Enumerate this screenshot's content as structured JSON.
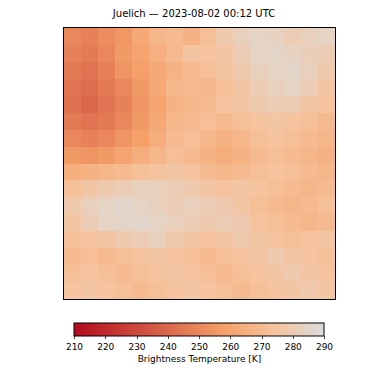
{
  "chart_data": {
    "type": "heatmap",
    "title": "Juelich — 2023-08-02 00:12 UTC",
    "tick_labels": false,
    "cells": [
      [
        250,
        248,
        252,
        255,
        262,
        268,
        270,
        266,
        272,
        278,
        282,
        284,
        283,
        280,
        282,
        284
      ],
      [
        248,
        246,
        250,
        256,
        260,
        265,
        270,
        275,
        274,
        276,
        280,
        284,
        285,
        283,
        281,
        280
      ],
      [
        246,
        244,
        248,
        254,
        258,
        262,
        266,
        270,
        272,
        275,
        278,
        282,
        284,
        285,
        282,
        278
      ],
      [
        244,
        242,
        246,
        250,
        256,
        262,
        268,
        270,
        268,
        272,
        276,
        280,
        282,
        284,
        280,
        276
      ],
      [
        243,
        240,
        244,
        248,
        254,
        260,
        266,
        268,
        270,
        274,
        276,
        278,
        280,
        279,
        276,
        274
      ],
      [
        246,
        244,
        246,
        250,
        256,
        262,
        268,
        270,
        272,
        270,
        272,
        274,
        276,
        274,
        272,
        270
      ],
      [
        250,
        248,
        250,
        254,
        258,
        264,
        270,
        272,
        268,
        266,
        268,
        272,
        274,
        272,
        270,
        268
      ],
      [
        256,
        254,
        256,
        260,
        264,
        268,
        272,
        270,
        266,
        264,
        266,
        270,
        272,
        270,
        268,
        266
      ],
      [
        264,
        266,
        268,
        270,
        272,
        274,
        276,
        274,
        270,
        268,
        270,
        272,
        274,
        272,
        270,
        268
      ],
      [
        272,
        276,
        278,
        280,
        282,
        282,
        280,
        278,
        276,
        274,
        276,
        274,
        272,
        270,
        268,
        270
      ],
      [
        278,
        282,
        284,
        286,
        284,
        282,
        280,
        282,
        280,
        278,
        276,
        272,
        270,
        268,
        270,
        272
      ],
      [
        276,
        280,
        284,
        285,
        286,
        284,
        282,
        280,
        278,
        280,
        278,
        274,
        272,
        270,
        268,
        270
      ],
      [
        272,
        274,
        276,
        278,
        280,
        282,
        278,
        276,
        274,
        276,
        278,
        276,
        274,
        272,
        274,
        276
      ],
      [
        270,
        272,
        270,
        272,
        274,
        276,
        274,
        272,
        270,
        272,
        274,
        276,
        278,
        276,
        274,
        272
      ],
      [
        272,
        274,
        272,
        270,
        272,
        274,
        276,
        274,
        272,
        270,
        272,
        274,
        276,
        278,
        276,
        274
      ],
      [
        274,
        276,
        274,
        272,
        270,
        272,
        274,
        276,
        274,
        272,
        270,
        272,
        274,
        276,
        278,
        276
      ]
    ],
    "colorbar": {
      "title": "Brightness Temperature [K]",
      "range": [
        210,
        290
      ],
      "ticks": [
        210,
        220,
        230,
        240,
        250,
        260,
        270,
        280,
        290
      ]
    }
  }
}
